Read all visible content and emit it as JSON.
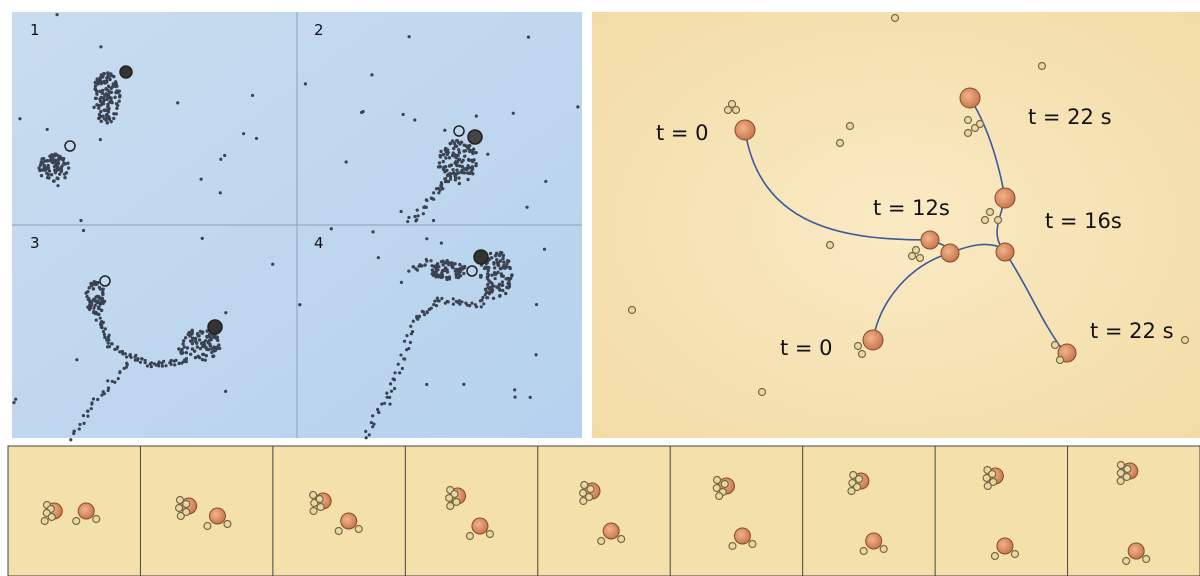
{
  "panel_a": {
    "frames": [
      {
        "label": "1"
      },
      {
        "label": "2"
      },
      {
        "label": "3"
      },
      {
        "label": "4"
      }
    ]
  },
  "panel_b": {
    "labels": [
      "t = 0",
      "t = 22 s",
      "t = 12s",
      "t = 16s",
      "t = 0",
      "t = 22 s"
    ]
  }
}
